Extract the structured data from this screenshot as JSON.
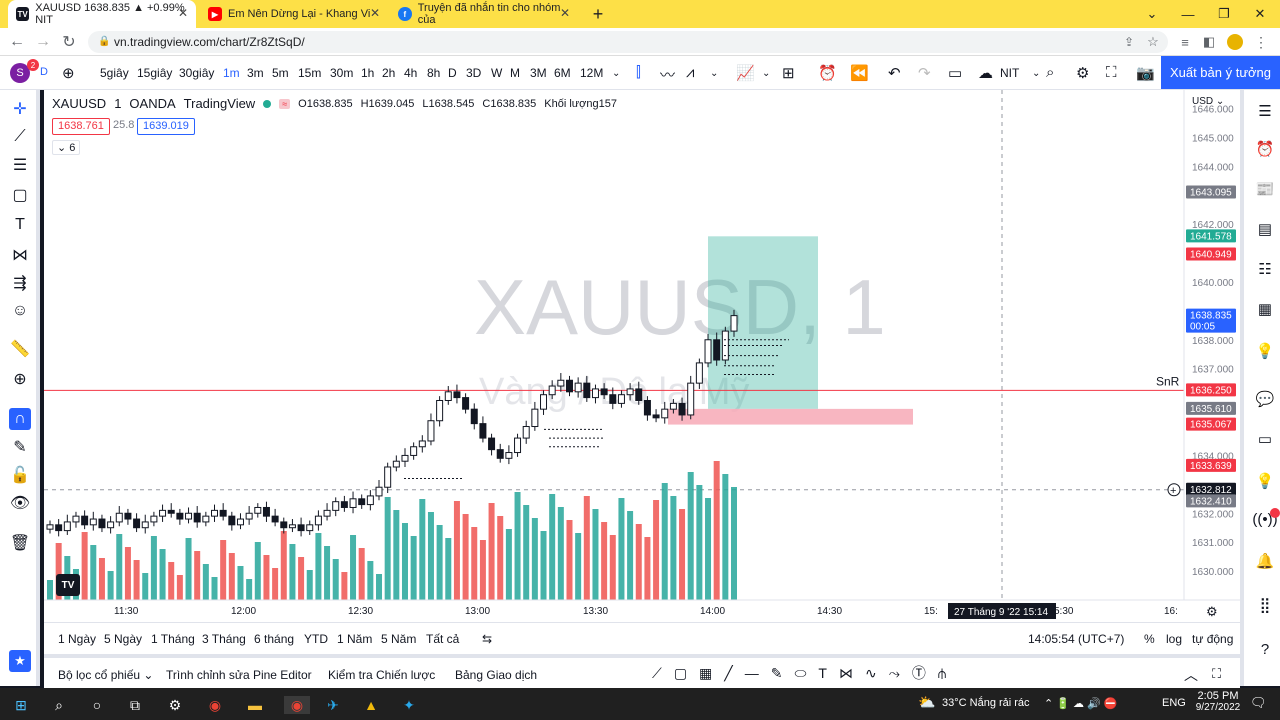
{
  "browser": {
    "tabs": [
      {
        "title": "XAUUSD 1638.835 ▲ +0.99% NIT",
        "icon": "tradingview-icon"
      },
      {
        "title": "Em Nên Dừng Lại - Khang Vi",
        "icon": "youtube-icon"
      },
      {
        "title": "Truyện đã nhắn tin cho nhóm của",
        "icon": "facebook-icon"
      }
    ],
    "url": "vn.tradingview.com/chart/Zr8ZtSqD/"
  },
  "toolbar": {
    "timeframes": [
      "5giây",
      "15giây",
      "30giây",
      "1m",
      "3m",
      "5m",
      "15m",
      "30m",
      "1h",
      "2h",
      "4h",
      "8h",
      "D",
      "3D",
      "W",
      "M",
      "3M",
      "6M",
      "12M"
    ],
    "active_timeframe": "1m",
    "layout_name": "NIT",
    "publish_label": "Xuất bản ý tưởng"
  },
  "legend": {
    "symbol": "XAUUSD",
    "interval": "1",
    "exchange": "OANDA",
    "source": "TradingView",
    "open": "O1638.835",
    "high": "H1639.045",
    "low": "L1638.545",
    "close": "C1638.835",
    "volume": "Khối lượng157",
    "bid": "1638.761",
    "spread": "25.8",
    "ask": "1639.019",
    "indicators_count": "6"
  },
  "watermark": {
    "symbol": "XAUUSD, 1",
    "description": "Vàng / Đô la Mỹ"
  },
  "chart_data": {
    "type": "candlestick",
    "currency": "USD",
    "y_ticks": [
      1646.0,
      1645.0,
      1644.0,
      1642.0,
      1640.0,
      1638.0,
      1637.0,
      1634.0,
      1632.0,
      1631.0,
      1630.0
    ],
    "ylim": [
      1629.0,
      1646.5
    ],
    "x_ticks": [
      "11:30",
      "12:00",
      "12:30",
      "13:00",
      "13:30",
      "14:00",
      "14:30",
      "15:",
      "5:30",
      "16:"
    ],
    "crosshair_time": "27 Tháng 9 '22   15:14",
    "price_labels": [
      {
        "value": "1643.095",
        "color": "#787b86"
      },
      {
        "value": "1641.578",
        "color": "#22ab94"
      },
      {
        "value": "1640.949",
        "color": "#f23645"
      },
      {
        "value": "1638.835",
        "color": "#2962ff",
        "sub": "00:05"
      },
      {
        "value": "1636.250",
        "color": "#f23645"
      },
      {
        "value": "1635.610",
        "color": "#787b86"
      },
      {
        "value": "1635.067",
        "color": "#f23645"
      },
      {
        "value": "1633.639",
        "color": "#f23645"
      },
      {
        "value": "1632.812",
        "color": "#131722"
      },
      {
        "value": "1632.410",
        "color": "#787b86"
      }
    ],
    "horizontal_line": {
      "label": "SnR",
      "price": 1636.25
    },
    "long_position": {
      "entry": 1635.61,
      "target": 1641.578,
      "stop": 1635.067
    },
    "close_series": [
      1631.6,
      1631.4,
      1631.7,
      1631.9,
      1631.6,
      1631.8,
      1631.5,
      1631.7,
      1632.0,
      1631.8,
      1631.5,
      1631.7,
      1631.9,
      1632.1,
      1632.0,
      1631.8,
      1632.0,
      1631.7,
      1631.9,
      1632.1,
      1631.9,
      1631.6,
      1631.8,
      1632.0,
      1632.2,
      1631.9,
      1631.7,
      1631.5,
      1631.6,
      1631.4,
      1631.6,
      1631.9,
      1632.1,
      1632.4,
      1632.2,
      1632.5,
      1632.3,
      1632.6,
      1632.9,
      1633.6,
      1633.8,
      1634.0,
      1634.3,
      1634.5,
      1635.2,
      1635.9,
      1636.2,
      1636.0,
      1635.6,
      1635.1,
      1634.6,
      1634.2,
      1633.9,
      1634.1,
      1634.6,
      1635.0,
      1635.6,
      1636.1,
      1636.4,
      1636.6,
      1636.2,
      1636.5,
      1636.0,
      1636.3,
      1636.1,
      1635.8,
      1636.1,
      1636.3,
      1635.9,
      1635.4,
      1635.3,
      1635.6,
      1635.8,
      1635.4,
      1636.5,
      1637.2,
      1638.0,
      1637.3,
      1638.3,
      1638.835
    ],
    "volume_scale_max": 157
  },
  "bottom": {
    "ranges": [
      "1 Ngày",
      "5 Ngày",
      "1 Tháng",
      "3 Tháng",
      "6 tháng",
      "YTD",
      "1 Năm",
      "5 Năm",
      "Tất cả"
    ],
    "clock": "14:05:54 (UTC+7)",
    "percent_label": "%",
    "log_label": "log",
    "auto_label": "tự động"
  },
  "panels": {
    "tabs": [
      "Bộ lọc cổ phiếu",
      "Trình chỉnh sửa Pine Editor",
      "Kiểm tra Chiến lược",
      "Bảng Giao dịch"
    ]
  },
  "taskbar": {
    "weather": "33°C  Nắng rải rác",
    "lang": "ENG",
    "time": "2:05 PM",
    "date": "9/27/2022"
  },
  "colors": {
    "up": "#26a69a",
    "down": "#ef5350",
    "accent": "#2962ff",
    "tabbar": "#fde047"
  }
}
